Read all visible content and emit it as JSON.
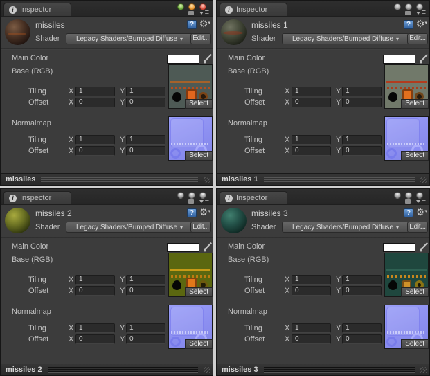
{
  "window": {
    "gap_color": "#cfcfcf"
  },
  "theme": {
    "panel_bg": "#3c3c3c",
    "tabbar_bg": "#2a2a2a",
    "field_bg": "#2b2b2b",
    "button_bg": "#565656",
    "footer_bg": "#2e2e2e",
    "text_color": "#c0c0c0",
    "help_icon_color": "#31619f",
    "main_color_swatch": "#ffffff",
    "traffic_lights_active": [
      "#7ab648",
      "#f0a03c",
      "#e05a4a"
    ],
    "traffic_light_inactive": "#a2a2a2",
    "normalmap_color": "#8d90f1"
  },
  "icons": {
    "info": "i",
    "help": "?",
    "gear": "⚙",
    "menu_lines": "≡",
    "dropdown": "▾"
  },
  "labels": {
    "tab": "Inspector",
    "shader": "Shader",
    "shader_value": "Legacy Shaders/Bumped Diffuse",
    "edit": "Edit...",
    "main_color": "Main Color",
    "base_rgb": "Base (RGB)",
    "normalmap": "Normalmap",
    "tiling": "Tiling",
    "offset": "Offset",
    "x": "X",
    "y": "Y",
    "select": "Select"
  },
  "panels": [
    {
      "name": "missiles",
      "footer": "missiles",
      "window_buttons": "colored",
      "base": {
        "tiling_x": "1",
        "tiling_y": "1",
        "offset_x": "0",
        "offset_y": "0"
      },
      "normal": {
        "tiling_x": "1",
        "tiling_y": "1",
        "offset_x": "0",
        "offset_y": "0"
      },
      "colors": {
        "sphere": "#4a3224",
        "base_texture_bg": "#4e5a55",
        "stripe": "#a6622a",
        "rect": "#e1661e"
      }
    },
    {
      "name": "missiles 1",
      "footer": "missiles 1",
      "window_buttons": "grey",
      "base": {
        "tiling_x": "1",
        "tiling_y": "1",
        "offset_x": "0",
        "offset_y": "0"
      },
      "normal": {
        "tiling_x": "1",
        "tiling_y": "1",
        "offset_x": "0",
        "offset_y": "0"
      },
      "colors": {
        "sphere": "#454a3a",
        "base_texture_bg": "#71796a",
        "stripe": "#b23c1e",
        "rect": "#e2701e"
      }
    },
    {
      "name": "missiles 2",
      "footer": "missiles 2",
      "window_buttons": "grey",
      "base": {
        "tiling_x": "1",
        "tiling_y": "1",
        "offset_x": "0",
        "offset_y": "0"
      },
      "normal": {
        "tiling_x": "1",
        "tiling_y": "1",
        "offset_x": "0",
        "offset_y": "0"
      },
      "colors": {
        "sphere": "#6d7324",
        "base_texture_bg": "#5b6710",
        "stripe": "#c79a16",
        "rect": "#e1781a"
      }
    },
    {
      "name": "missiles 3",
      "footer": "missiles 3",
      "window_buttons": "grey",
      "base": {
        "tiling_x": "1",
        "tiling_y": "1",
        "offset_x": "0",
        "offset_y": "0"
      },
      "normal": {
        "tiling_x": "1",
        "tiling_y": "1",
        "offset_x": "0",
        "offset_y": "0"
      },
      "colors": {
        "sphere": "#235148",
        "base_texture_bg": "#1f473e",
        "stripe": "#2e6052",
        "rect": "#d0922a"
      }
    }
  ]
}
